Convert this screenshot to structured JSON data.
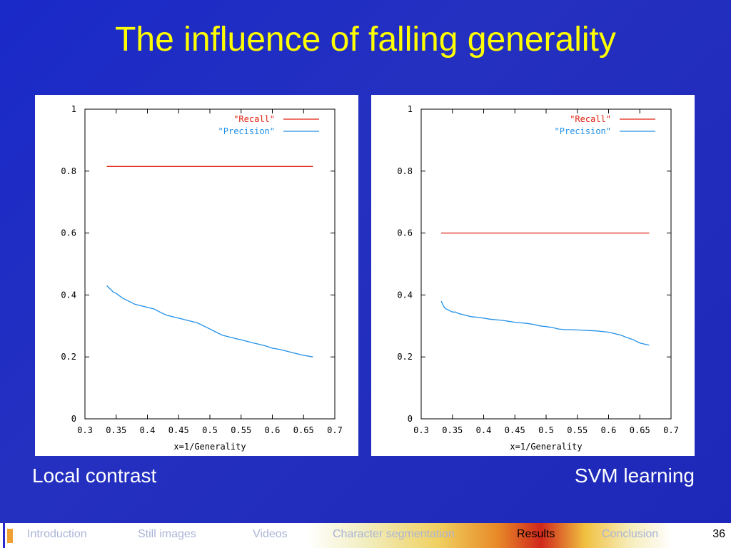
{
  "slide": {
    "title": "The influence of falling generality",
    "caption_left": "Local contrast",
    "caption_right": "SVM learning",
    "page_number": "36"
  },
  "nav": {
    "items": [
      "Introduction",
      "Still images",
      "Videos",
      "Character segmentation",
      "Results",
      "Conclusion"
    ],
    "active": "Results"
  },
  "colors": {
    "background": "#1e2bc2",
    "title": "#ffff00",
    "recall": "#e02010",
    "precision": "#2090e8"
  },
  "chart_data": [
    {
      "type": "line",
      "xlabel": "x=1/Generality",
      "ylabel": "",
      "xlim": [
        0.3,
        0.7
      ],
      "ylim": [
        0,
        1
      ],
      "xticks": [
        "0.3",
        "0.35",
        "0.4",
        "0.45",
        "0.5",
        "0.55",
        "0.6",
        "0.65",
        "0.7"
      ],
      "yticks": [
        "0",
        "0.2",
        "0.4",
        "0.6",
        "0.8",
        "1"
      ],
      "legend": "top-right",
      "grid": false,
      "series": [
        {
          "name": "\"Recall\"",
          "color": "#e02010",
          "x": [
            0.335,
            0.665
          ],
          "y": [
            0.815,
            0.815
          ]
        },
        {
          "name": "\"Precision\"",
          "color": "#2090e8",
          "x": [
            0.335,
            0.34,
            0.345,
            0.35,
            0.36,
            0.37,
            0.38,
            0.39,
            0.4,
            0.41,
            0.42,
            0.43,
            0.44,
            0.45,
            0.46,
            0.47,
            0.48,
            0.49,
            0.5,
            0.51,
            0.52,
            0.53,
            0.54,
            0.55,
            0.56,
            0.57,
            0.58,
            0.59,
            0.6,
            0.61,
            0.62,
            0.63,
            0.64,
            0.65,
            0.665
          ],
          "y": [
            0.43,
            0.42,
            0.41,
            0.405,
            0.39,
            0.38,
            0.37,
            0.365,
            0.36,
            0.355,
            0.345,
            0.335,
            0.33,
            0.325,
            0.32,
            0.315,
            0.31,
            0.3,
            0.29,
            0.28,
            0.27,
            0.265,
            0.26,
            0.255,
            0.25,
            0.245,
            0.24,
            0.235,
            0.228,
            0.225,
            0.22,
            0.215,
            0.21,
            0.205,
            0.2
          ]
        }
      ]
    },
    {
      "type": "line",
      "xlabel": "x=1/Generality",
      "ylabel": "",
      "xlim": [
        0.3,
        0.7
      ],
      "ylim": [
        0,
        1
      ],
      "xticks": [
        "0.3",
        "0.35",
        "0.4",
        "0.45",
        "0.5",
        "0.55",
        "0.6",
        "0.65",
        "0.7"
      ],
      "yticks": [
        "0",
        "0.2",
        "0.4",
        "0.6",
        "0.8",
        "1"
      ],
      "legend": "top-right",
      "grid": false,
      "series": [
        {
          "name": "\"Recall\"",
          "color": "#e02010",
          "x": [
            0.332,
            0.665
          ],
          "y": [
            0.6,
            0.6
          ]
        },
        {
          "name": "\"Precision\"",
          "color": "#2090e8",
          "x": [
            0.332,
            0.337,
            0.34,
            0.345,
            0.35,
            0.355,
            0.36,
            0.37,
            0.38,
            0.39,
            0.4,
            0.41,
            0.42,
            0.43,
            0.44,
            0.45,
            0.46,
            0.47,
            0.48,
            0.49,
            0.5,
            0.51,
            0.52,
            0.53,
            0.54,
            0.55,
            0.56,
            0.57,
            0.58,
            0.59,
            0.6,
            0.61,
            0.62,
            0.63,
            0.64,
            0.65,
            0.665
          ],
          "y": [
            0.38,
            0.36,
            0.355,
            0.35,
            0.345,
            0.345,
            0.34,
            0.335,
            0.33,
            0.328,
            0.325,
            0.322,
            0.32,
            0.318,
            0.315,
            0.312,
            0.31,
            0.308,
            0.305,
            0.3,
            0.298,
            0.295,
            0.29,
            0.288,
            0.288,
            0.287,
            0.286,
            0.285,
            0.284,
            0.282,
            0.28,
            0.275,
            0.27,
            0.262,
            0.255,
            0.245,
            0.238
          ]
        }
      ]
    }
  ]
}
